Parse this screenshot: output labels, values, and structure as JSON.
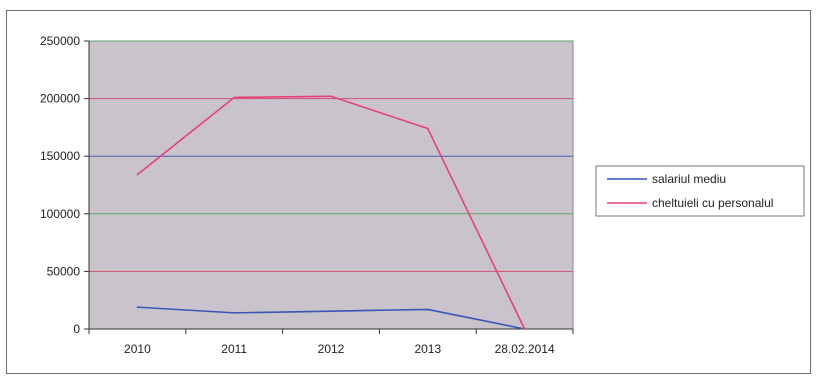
{
  "chart_data": {
    "type": "line",
    "categories": [
      "2010",
      "2011",
      "2012",
      "2013",
      "28.02.2014"
    ],
    "series": [
      {
        "name": "salariul mediu",
        "color": "#3a55b5",
        "values": [
          19000,
          14000,
          15500,
          17000,
          0
        ]
      },
      {
        "name": "cheltuieli cu personalul",
        "color": "#e8407a",
        "values": [
          134000,
          201000,
          202000,
          174000,
          0
        ]
      }
    ],
    "y_ticks": [
      0,
      50000,
      100000,
      150000,
      200000,
      250000
    ],
    "ylim": [
      0,
      250000
    ],
    "grid": true,
    "grid_colors": [
      "#4a5fb0",
      "#d05070",
      "#5aa870"
    ],
    "plot_background": "#c9c3cb",
    "legend_position": "right",
    "title": "",
    "xlabel": "",
    "ylabel": ""
  }
}
